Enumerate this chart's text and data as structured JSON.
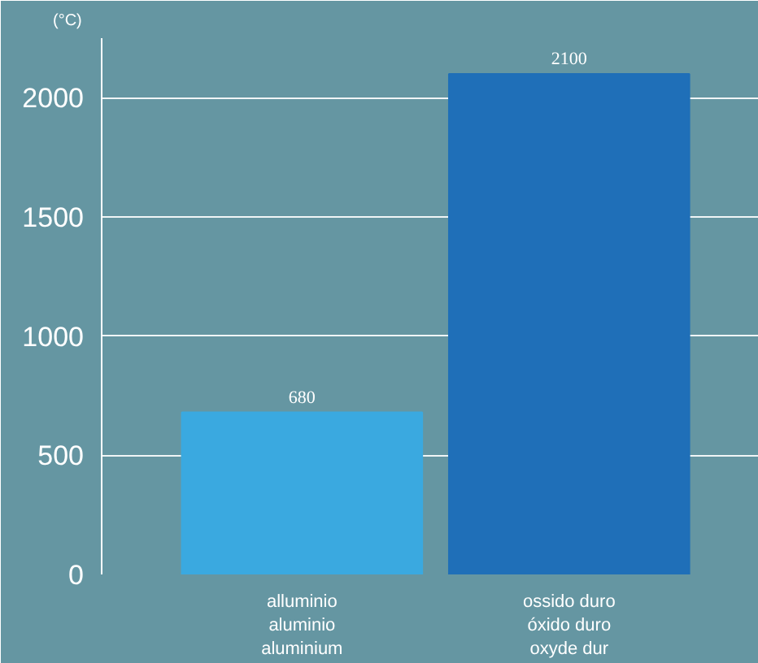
{
  "chart_data": {
    "type": "bar",
    "ylabel": "(°C)",
    "categories": [
      "alluminio\naluminio\naluminium",
      "ossido duro\nóxido duro\noxyde dur"
    ],
    "values": [
      680,
      2100
    ],
    "colors": [
      "#3aa9e0",
      "#1f6fb8"
    ],
    "ylim": [
      0,
      2250
    ],
    "yticks": [
      0,
      500,
      1000,
      1500,
      2000
    ],
    "grid": "y",
    "data_labels": true
  }
}
